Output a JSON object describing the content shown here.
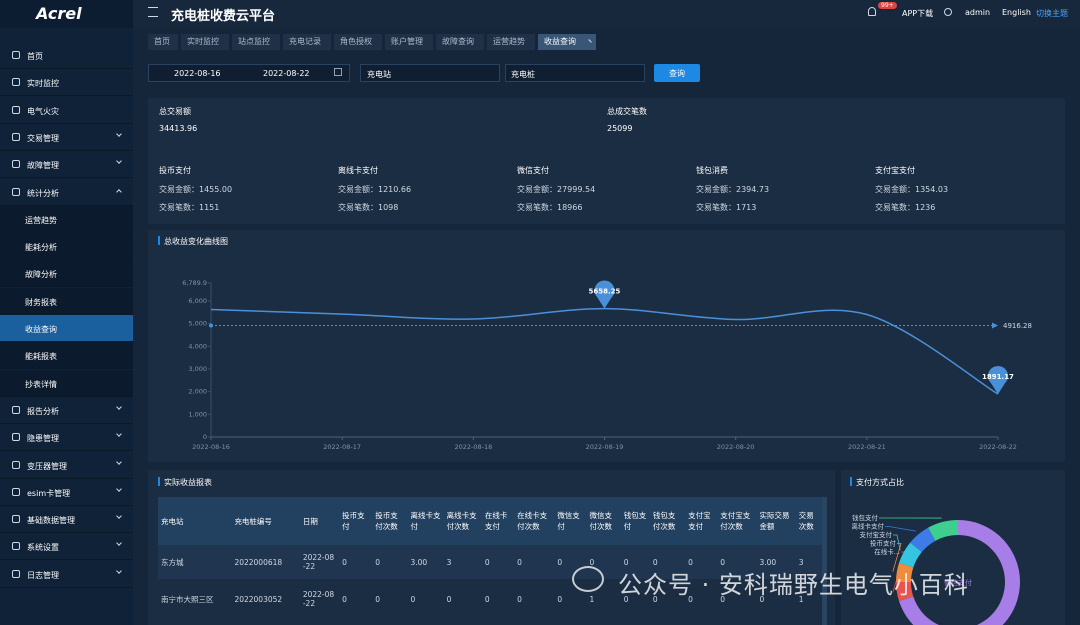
{
  "sidebar": {
    "logo": "Acrel",
    "items": [
      {
        "label": "首页"
      },
      {
        "label": "实时监控"
      },
      {
        "label": "电气火灾"
      },
      {
        "label": "交易管理",
        "arrow": "down"
      },
      {
        "label": "故障管理",
        "arrow": "down"
      },
      {
        "label": "统计分析",
        "arrow": "up",
        "children": [
          {
            "label": "运营趋势"
          },
          {
            "label": "能耗分析"
          },
          {
            "label": "故障分析"
          },
          {
            "label": "财务报表"
          },
          {
            "label": "收益查询",
            "active": true
          },
          {
            "label": "能耗报表"
          },
          {
            "label": "抄表详情"
          }
        ]
      },
      {
        "label": "报告分析",
        "arrow": "down"
      },
      {
        "label": "隐患管理",
        "arrow": "down"
      },
      {
        "label": "变压器管理",
        "arrow": "down"
      },
      {
        "label": "esim卡管理",
        "arrow": "down"
      },
      {
        "label": "基础数据管理",
        "arrow": "down"
      },
      {
        "label": "系统设置",
        "arrow": "down"
      },
      {
        "label": "日志管理",
        "arrow": "down"
      }
    ]
  },
  "header": {
    "title": "充电桩收费云平台",
    "badge": "99+",
    "app": "APP下载",
    "user": "admin",
    "lang": "English",
    "theme": "切换主题"
  },
  "tabs": [
    {
      "label": "首页"
    },
    {
      "label": "实时监控"
    },
    {
      "label": "站点监控"
    },
    {
      "label": "充电记录"
    },
    {
      "label": "角色授权"
    },
    {
      "label": "账户管理"
    },
    {
      "label": "故障查询"
    },
    {
      "label": "运营趋势"
    },
    {
      "label": "收益查询",
      "active": true
    }
  ],
  "filters": {
    "start": "2022-08-16",
    "end": "2022-08-22",
    "station": "充电站",
    "pile": "充电桩",
    "button": "查询"
  },
  "summary": [
    {
      "name": "总交易额",
      "value": "34413.96"
    },
    {
      "name": "总成交笔数",
      "value": "25099"
    }
  ],
  "payments": [
    {
      "name": "投币支付",
      "amount_label": "交易金额：",
      "amount": "1455.00",
      "count_label": "交易笔数：",
      "count": 1151
    },
    {
      "name": "离线卡支付",
      "amount_label": "交易金额：",
      "amount": "1210.66",
      "count_label": "交易笔数：",
      "count": 1098
    },
    {
      "name": "微信支付",
      "amount_label": "交易金额：",
      "amount": "27999.54",
      "count_label": "交易笔数：",
      "count": 18966
    },
    {
      "name": "钱包消费",
      "amount_label": "交易金额：",
      "amount": "2394.73",
      "count_label": "交易笔数：",
      "count": 1713
    },
    {
      "name": "支付宝支付",
      "amount_label": "交易金额：",
      "amount": "1354.03",
      "count_label": "交易笔数：",
      "count": 1236
    }
  ],
  "chart_data": [
    {
      "type": "line",
      "title": "总收益变化曲线图",
      "categories": [
        "2022-08-16",
        "2022-08-17",
        "2022-08-18",
        "2022-08-19",
        "2022-08-20",
        "2022-08-21",
        "2022-08-22"
      ],
      "series": [
        {
          "name": "总收益",
          "color": "#4a90d9",
          "values": [
            5620,
            5420,
            5200,
            5658.25,
            5180,
            5400,
            1891.17
          ]
        }
      ],
      "ylim": [
        0,
        6789.9
      ],
      "yticks": [
        0,
        {
          "value": 1000,
          "label": "1,000"
        },
        {
          "value": 2000,
          "label": "2,000"
        },
        {
          "value": 3000,
          "label": "3,000"
        },
        {
          "value": 4000,
          "label": "4,000"
        },
        {
          "value": 5000,
          "label": "5,000"
        },
        {
          "value": 6000,
          "label": "6,000"
        },
        {
          "value": 6789.9,
          "label": "6,789.9"
        }
      ],
      "grid": false,
      "average": 4916.28
    },
    {
      "type": "pie",
      "title": "支付方式占比",
      "categories": [
        "微信支付",
        "在线卡...",
        "投币支付",
        "支付宝支付",
        "离线卡支付",
        "钱包支付"
      ],
      "values": [
        70,
        5,
        5,
        6,
        6,
        8
      ],
      "colors": [
        "#a77ee8",
        "#e8544e",
        "#f08a3c",
        "#36c5e0",
        "#3d7be8",
        "#3ecf8e"
      ]
    }
  ],
  "table": {
    "title": "实际收益报表",
    "columns": [
      "充电站",
      "充电桩编号",
      "日期",
      "投币支付",
      "投币支付次数",
      "离线卡支付",
      "离线卡支付次数",
      "在线卡支付",
      "在线卡支付次数",
      "微信支付",
      "微信支付次数",
      "钱包支付",
      "钱包支付次数",
      "支付宝支付",
      "支付宝支付次数",
      "实际交易金额",
      "交易次数"
    ],
    "rows": [
      [
        "东方城",
        "2022000618",
        "2022-08-22",
        "0",
        "0",
        "3.00",
        "3",
        "0",
        "0",
        "0",
        "0",
        "0",
        "0",
        "0",
        "0",
        "3.00",
        "3"
      ],
      [
        "南宁市大照三区",
        "2022003052",
        "2022-08-22",
        "0",
        "0",
        "0",
        "0",
        "0",
        "0",
        "0",
        "1",
        "0",
        "0",
        "0",
        "0",
        "0",
        "1"
      ]
    ]
  },
  "watermark": "公众号 · 安科瑞野生电气小百科"
}
